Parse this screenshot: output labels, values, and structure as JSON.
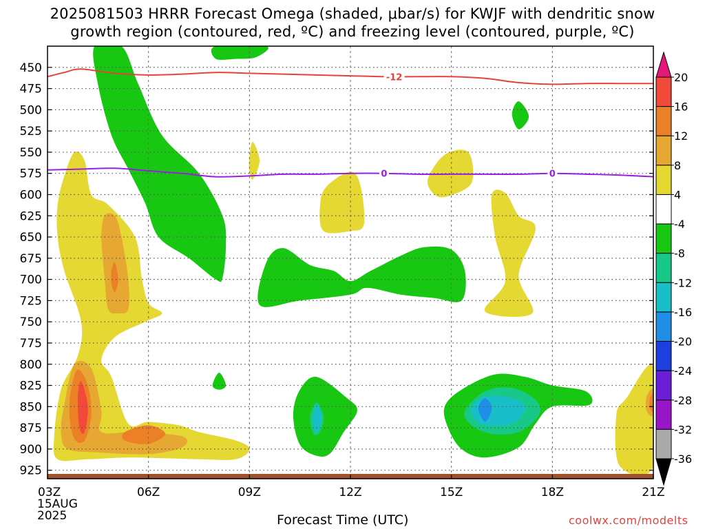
{
  "title_line1": "2025081503 HRRR Forecast Omega (shaded, μbar/s) for KWJF with dendritic snow",
  "title_line2": "growth region (contoured, red, ºC) and freezing level (contoured, purple, ºC)",
  "xlabel": "Forecast Time (UTC)",
  "credit": "coolwx.com/modelts",
  "colors": {
    "pos4_8": "#e6d832",
    "pos8_12": "#e6a833",
    "pos12_16": "#ec8026",
    "pos16_20": "#f24a3a",
    "neg4_8": "#18c712",
    "neg8_12": "#18c888",
    "neg12_16": "#18bfc8",
    "neg16_20": "#1e8ee6",
    "dgz": "#e8413c",
    "freezing": "#9a1ee0",
    "terrain": "#a0522d"
  },
  "chart_data": {
    "type": "time-height contour",
    "x_ticks": [
      "03Z",
      "06Z",
      "09Z",
      "12Z",
      "15Z",
      "18Z",
      "21Z"
    ],
    "x_hours": [
      3,
      6,
      9,
      12,
      15,
      18,
      21
    ],
    "start_date_label": [
      "15AUG",
      "2025"
    ],
    "y_ticks": [
      450,
      475,
      500,
      525,
      550,
      575,
      600,
      625,
      650,
      675,
      700,
      725,
      750,
      775,
      800,
      825,
      850,
      875,
      900,
      925
    ],
    "y_axis": "pressure (mb), inverted",
    "y_range": [
      425,
      935
    ],
    "x_range": [
      3,
      21
    ],
    "grid": true,
    "colorbar_levels": [
      20,
      16,
      12,
      8,
      4,
      -4,
      -8,
      -12,
      -16,
      -20,
      -24,
      -28,
      -32,
      -36
    ],
    "colorbar_colors": [
      "#f24a3a",
      "#ec8026",
      "#e6a833",
      "#e6d832",
      "#ffffff",
      "#18c712",
      "#18c888",
      "#18bfc8",
      "#1e8ee6",
      "#1d3fe0",
      "#6a1ed8",
      "#9a14c8",
      "#aaaaaa"
    ],
    "series": [
      {
        "name": "-12",
        "label": "-12",
        "points": [
          [
            3,
            461
          ],
          [
            3.5,
            456
          ],
          [
            4,
            452
          ],
          [
            5,
            457
          ],
          [
            6,
            459
          ],
          [
            7,
            458
          ],
          [
            8,
            456
          ],
          [
            9,
            457
          ],
          [
            10,
            458
          ],
          [
            11,
            459
          ],
          [
            12,
            460
          ],
          [
            13,
            461
          ],
          [
            14,
            461
          ],
          [
            15,
            461
          ],
          [
            16,
            463
          ],
          [
            17,
            468
          ],
          [
            18,
            470
          ],
          [
            19,
            469
          ],
          [
            20,
            469
          ],
          [
            21,
            469
          ]
        ]
      },
      {
        "name": "0",
        "label": "0",
        "points": [
          [
            3,
            571
          ],
          [
            4,
            570
          ],
          [
            5,
            569
          ],
          [
            6,
            572
          ],
          [
            7,
            575
          ],
          [
            8,
            579
          ],
          [
            9,
            578
          ],
          [
            10,
            576
          ],
          [
            11,
            576
          ],
          [
            12,
            575
          ],
          [
            13,
            575
          ],
          [
            14,
            576
          ],
          [
            15,
            576
          ],
          [
            16,
            576
          ],
          [
            17,
            576
          ],
          [
            18,
            575
          ],
          [
            19,
            576
          ],
          [
            20,
            577
          ],
          [
            21,
            579
          ]
        ]
      }
    ],
    "shaded_regions": [
      {
        "level": "-8 to -4",
        "points": [
          [
            4.4,
            425
          ],
          [
            5.2,
            425
          ],
          [
            5.7,
            470
          ],
          [
            6.4,
            530
          ],
          [
            7.5,
            575
          ],
          [
            8.2,
            625
          ],
          [
            8.3,
            660
          ],
          [
            8.2,
            698
          ],
          [
            8.0,
            700
          ],
          [
            7.2,
            675
          ],
          [
            6.3,
            650
          ],
          [
            5.9,
            610
          ],
          [
            5.4,
            570
          ],
          [
            4.9,
            530
          ],
          [
            4.5,
            470
          ]
        ]
      },
      {
        "level": "-8 to -4",
        "points": [
          [
            8.0,
            425
          ],
          [
            9.5,
            425
          ],
          [
            9.2,
            438
          ],
          [
            8.6,
            440
          ],
          [
            8.0,
            440
          ]
        ]
      },
      {
        "level": "-8 to -4",
        "points": [
          [
            9.3,
            730
          ],
          [
            9.5,
            680
          ],
          [
            10.0,
            663
          ],
          [
            10.8,
            683
          ],
          [
            11.5,
            690
          ],
          [
            12.0,
            702
          ],
          [
            12.6,
            690
          ],
          [
            13.5,
            672
          ],
          [
            14.2,
            662
          ],
          [
            15.0,
            665
          ],
          [
            15.4,
            690
          ],
          [
            15.3,
            725
          ],
          [
            14.5,
            722
          ],
          [
            13.5,
            718
          ],
          [
            12.5,
            710
          ],
          [
            12.0,
            718
          ],
          [
            10.5,
            725
          ]
        ]
      },
      {
        "level": "-8 to -4",
        "points": [
          [
            10.3,
            860
          ],
          [
            10.5,
            830
          ],
          [
            11.0,
            815
          ],
          [
            11.9,
            840
          ],
          [
            12.2,
            855
          ],
          [
            11.8,
            880
          ],
          [
            11.4,
            905
          ],
          [
            11.0,
            908
          ],
          [
            10.5,
            895
          ]
        ]
      },
      {
        "level": "-8 to -4",
        "points": [
          [
            14.8,
            850
          ],
          [
            15.3,
            830
          ],
          [
            16.3,
            812
          ],
          [
            17.2,
            815
          ],
          [
            18.0,
            825
          ],
          [
            19.0,
            832
          ],
          [
            19.1,
            848
          ],
          [
            18.0,
            850
          ],
          [
            17.5,
            870
          ],
          [
            17.0,
            898
          ],
          [
            16.0,
            910
          ],
          [
            15.3,
            900
          ],
          [
            14.9,
            875
          ]
        ]
      },
      {
        "level": "-8 to -4",
        "points": [
          [
            7.9,
            825
          ],
          [
            8.1,
            810
          ],
          [
            8.3,
            825
          ],
          [
            8.1,
            830
          ]
        ]
      },
      {
        "level": "-8 to -4",
        "points": [
          [
            16.8,
            505
          ],
          [
            17.0,
            490
          ],
          [
            17.3,
            508
          ],
          [
            17.0,
            523
          ]
        ]
      },
      {
        "level": "-8 to -4",
        "points": [
          [
            3.9,
            705
          ],
          [
            4.0,
            698
          ],
          [
            4.1,
            705
          ],
          [
            4.0,
            712
          ]
        ]
      },
      {
        "level": "-12 to -8",
        "points": [
          [
            15.4,
            855
          ],
          [
            16.0,
            832
          ],
          [
            16.8,
            828
          ],
          [
            17.5,
            842
          ],
          [
            17.6,
            860
          ],
          [
            17.0,
            880
          ],
          [
            16.2,
            882
          ],
          [
            15.6,
            872
          ]
        ]
      },
      {
        "level": "-12 to -8",
        "points": [
          [
            10.8,
            862
          ],
          [
            11.0,
            845
          ],
          [
            11.2,
            862
          ],
          [
            11.1,
            880
          ],
          [
            10.9,
            882
          ]
        ]
      },
      {
        "level": "-16 to -12",
        "points": [
          [
            15.6,
            852
          ],
          [
            16.0,
            838
          ],
          [
            16.8,
            840
          ],
          [
            17.2,
            852
          ],
          [
            16.8,
            870
          ],
          [
            16.0,
            872
          ],
          [
            15.7,
            865
          ]
        ]
      },
      {
        "level": "-16 to -12",
        "points": [
          [
            10.9,
            862
          ],
          [
            11.0,
            848
          ],
          [
            11.15,
            862
          ],
          [
            11.05,
            878
          ],
          [
            10.95,
            878
          ]
        ]
      },
      {
        "level": "-20 to -16",
        "points": [
          [
            15.8,
            852
          ],
          [
            16.0,
            840
          ],
          [
            16.2,
            852
          ],
          [
            16.0,
            868
          ]
        ]
      },
      {
        "level": "4 to 8",
        "points": [
          [
            3.3,
            612
          ],
          [
            3.5,
            578
          ],
          [
            3.8,
            550
          ],
          [
            4.1,
            560
          ],
          [
            4.3,
            600
          ],
          [
            4.8,
            612
          ],
          [
            5.6,
            650
          ],
          [
            5.8,
            698
          ],
          [
            6.0,
            728
          ],
          [
            6.4,
            740
          ],
          [
            5.9,
            750
          ],
          [
            5.0,
            768
          ],
          [
            4.6,
            795
          ],
          [
            4.9,
            815
          ],
          [
            5.4,
            870
          ],
          [
            6.0,
            868
          ],
          [
            6.9,
            872
          ],
          [
            7.5,
            880
          ],
          [
            8.6,
            890
          ],
          [
            9.0,
            900
          ],
          [
            8.6,
            912
          ],
          [
            7.5,
            912
          ],
          [
            5.5,
            910
          ],
          [
            4.2,
            912
          ],
          [
            3.3,
            912
          ],
          [
            3.2,
            885
          ],
          [
            3.4,
            830
          ],
          [
            3.9,
            790
          ],
          [
            4.0,
            750
          ],
          [
            3.5,
            690
          ],
          [
            3.3,
            650
          ]
        ]
      },
      {
        "level": "4 to 8",
        "points": [
          [
            9.0,
            555
          ],
          [
            9.1,
            538
          ],
          [
            9.3,
            560
          ],
          [
            9.1,
            582
          ],
          [
            9.0,
            572
          ]
        ]
      },
      {
        "level": "4 to 8",
        "points": [
          [
            11.1,
            612
          ],
          [
            11.3,
            590
          ],
          [
            12.0,
            573
          ],
          [
            12.3,
            590
          ],
          [
            12.4,
            635
          ],
          [
            12.0,
            643
          ],
          [
            11.2,
            643
          ]
        ]
      },
      {
        "level": "4 to 8",
        "points": [
          [
            14.3,
            582
          ],
          [
            14.8,
            553
          ],
          [
            15.5,
            550
          ],
          [
            15.6,
            586
          ],
          [
            14.9,
            602
          ],
          [
            14.5,
            600
          ]
        ]
      },
      {
        "level": "4 to 8",
        "points": [
          [
            16.2,
            600
          ],
          [
            16.6,
            598
          ],
          [
            17.0,
            625
          ],
          [
            17.5,
            640
          ],
          [
            17.0,
            695
          ],
          [
            17.4,
            740
          ],
          [
            16.0,
            738
          ],
          [
            16.6,
            702
          ],
          [
            16.3,
            650
          ]
        ]
      },
      {
        "level": "4 to 8",
        "points": [
          [
            19.9,
            860
          ],
          [
            20.2,
            840
          ],
          [
            21.0,
            803
          ],
          [
            21.0,
            920
          ],
          [
            20.0,
            920
          ]
        ]
      },
      {
        "level": "8 to 12",
        "points": [
          [
            4.7,
            625
          ],
          [
            5.0,
            625
          ],
          [
            5.2,
            650
          ],
          [
            5.4,
            700
          ],
          [
            5.4,
            735
          ],
          [
            5.1,
            740
          ],
          [
            4.8,
            735
          ],
          [
            4.7,
            700
          ],
          [
            4.6,
            650
          ]
        ]
      },
      {
        "level": "8 to 12",
        "points": [
          [
            3.5,
            848
          ],
          [
            3.8,
            800
          ],
          [
            4.3,
            805
          ],
          [
            4.6,
            855
          ],
          [
            4.6,
            880
          ],
          [
            5.6,
            880
          ],
          [
            7.0,
            885
          ],
          [
            7.0,
            898
          ],
          [
            6.0,
            906
          ],
          [
            4.5,
            904
          ],
          [
            3.6,
            900
          ],
          [
            3.4,
            880
          ]
        ]
      },
      {
        "level": "8 to 12",
        "points": [
          [
            20.8,
            838
          ],
          [
            21.0,
            830
          ],
          [
            21.0,
            860
          ],
          [
            20.8,
            855
          ]
        ]
      },
      {
        "level": "12 to 16",
        "points": [
          [
            4.9,
            690
          ],
          [
            5.0,
            680
          ],
          [
            5.1,
            700
          ],
          [
            5.0,
            715
          ],
          [
            4.9,
            705
          ]
        ]
      },
      {
        "level": "12 to 16",
        "points": [
          [
            3.7,
            830
          ],
          [
            3.9,
            806
          ],
          [
            4.2,
            825
          ],
          [
            4.3,
            860
          ],
          [
            4.1,
            890
          ],
          [
            3.8,
            888
          ],
          [
            3.65,
            860
          ]
        ]
      },
      {
        "level": "12 to 16",
        "points": [
          [
            5.3,
            880
          ],
          [
            6.0,
            872
          ],
          [
            6.5,
            882
          ],
          [
            6.0,
            894
          ],
          [
            5.3,
            890
          ]
        ]
      },
      {
        "level": "12 to 16",
        "points": [
          [
            20.9,
            840
          ],
          [
            21.0,
            835
          ],
          [
            21.0,
            855
          ],
          [
            20.9,
            852
          ]
        ]
      },
      {
        "level": "16 to 20",
        "points": [
          [
            3.9,
            840
          ],
          [
            4.0,
            820
          ],
          [
            4.2,
            850
          ],
          [
            4.1,
            880
          ],
          [
            3.95,
            875
          ]
        ]
      }
    ]
  }
}
